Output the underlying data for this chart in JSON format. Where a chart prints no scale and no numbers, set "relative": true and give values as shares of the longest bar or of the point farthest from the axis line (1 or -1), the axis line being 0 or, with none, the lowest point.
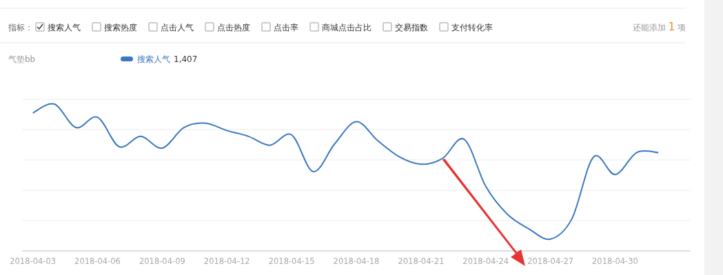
{
  "chart_data": {
    "type": "line",
    "title": "气垫bb",
    "relative": true,
    "grid": "y",
    "legend": "top left",
    "marker": "none",
    "line_style": "solid",
    "annotations": [
      "指标：",
      "搜索人气",
      "搜索热度",
      "点击人气",
      "点击热度",
      "点击率",
      "商城点击占比",
      "交易指数",
      "支付转化率",
      "还能添加 1 项",
      "1,407"
    ],
    "x": [
      "2018-04-03",
      "2018-04-04",
      "2018-04-05",
      "2018-04-06",
      "2018-04-07",
      "2018-04-08",
      "2018-04-09",
      "2018-04-10",
      "2018-04-11",
      "2018-04-12",
      "2018-04-13",
      "2018-04-14",
      "2018-04-15",
      "2018-04-16",
      "2018-04-17",
      "2018-04-18",
      "2018-04-19",
      "2018-04-20",
      "2018-04-21",
      "2018-04-22",
      "2018-04-23",
      "2018-04-24",
      "2018-04-25",
      "2018-04-26",
      "2018-04-27",
      "2018-04-28",
      "2018-04-29",
      "2018-04-30",
      "2018-05-01",
      "2018-05-02"
    ],
    "xlim": [
      "2018-04-02T12:00",
      "2018-05-03T12:00"
    ],
    "xticks": [
      {
        "value": "2018-04-03",
        "label": "2018-04-03"
      },
      {
        "value": "2018-04-06",
        "label": "2018-04-06"
      },
      {
        "value": "2018-04-09",
        "label": "2018-04-09"
      },
      {
        "value": "2018-04-12",
        "label": "2018-04-12"
      },
      {
        "value": "2018-04-15",
        "label": "2018-04-15"
      },
      {
        "value": "2018-04-18",
        "label": "2018-04-18"
      },
      {
        "value": "2018-04-21",
        "label": "2018-04-21"
      },
      {
        "value": "2018-04-24",
        "label": "2018-04-24"
      },
      {
        "value": "2018-04-27",
        "label": "2018-04-27"
      },
      {
        "value": "2018-04-30",
        "label": "2018-04-30"
      }
    ],
    "series": [
      {
        "name": "搜索人气",
        "color": "#3a78c0",
        "values": [
          0.94,
          1,
          0.84,
          0.91,
          0.71,
          0.78,
          0.7,
          0.84,
          0.87,
          0.82,
          0.78,
          0.72,
          0.79,
          0.54,
          0.73,
          0.88,
          0.75,
          0.64,
          0.59,
          0.63,
          0.76,
          0.44,
          0.25,
          0.15,
          0.08,
          0.22,
          0.64,
          0.52,
          0.67,
          0.67
        ]
      }
    ]
  }
}
